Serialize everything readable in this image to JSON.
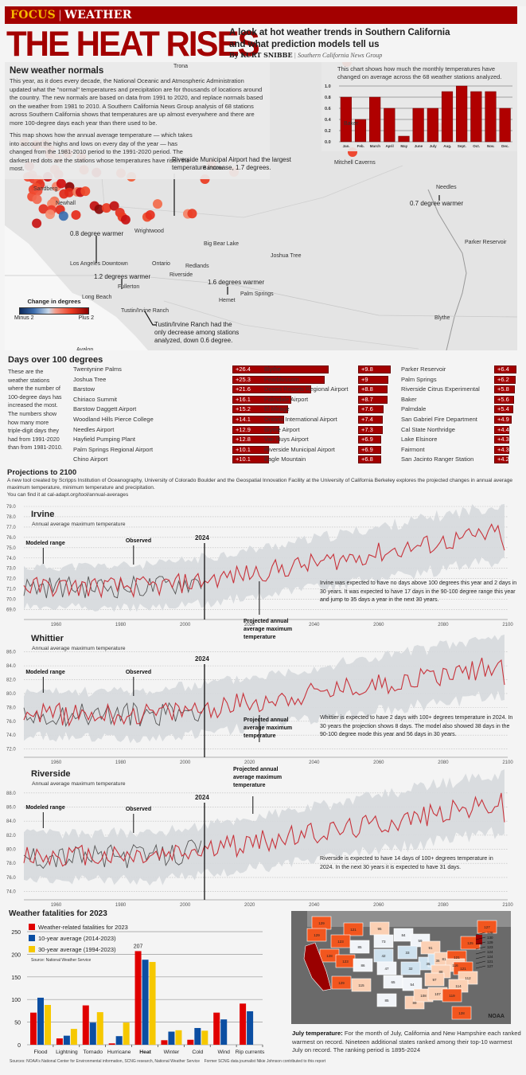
{
  "header": {
    "kicker_section": "FOCUS",
    "kicker_topic": "WEATHER",
    "headline": "THE HEAT RISES",
    "dek": "A look at hot weather trends in Southern California and what prediction models tell us",
    "byline_author": "By KURT SNIBBE",
    "byline_org": "Southern California News Group"
  },
  "normals": {
    "title": "New weather normals",
    "para1": "This year, as it does every decade, the National Oceanic and Atmospheric Administration updated what the \"normal\" temperatures and precipitation are for thousands of locations around the country. The new normals are based on data from 1991 to 2020, and replace normals based on the weather from 1981 to 2010. A Southern California News Group analysis of 68 stations across Southern California shows that temperatures are up almost everywhere and there are more 100-degree days each year than there used to be.",
    "para2": "This map shows how the annual average temperature — which takes into account the highs and lows on every day of the year — has changed from the 1981-2010 period to the 1991-2020 period. The darkest red dots are the stations whose temperatures have risen the most."
  },
  "map": {
    "legend_title": "Change in degrees",
    "legend_min": "Minus 2",
    "legend_max": "Plus 2",
    "places": [
      "Trona",
      "Baker",
      "Mitchell Caverns",
      "Barstow",
      "Needles",
      "Sandberg",
      "Newhall",
      "Wrightwood",
      "Big Bear Lake",
      "Joshua Tree",
      "Parker Reservoir",
      "Los Angeles Downtown",
      "Ontario",
      "Redlands",
      "Riverside",
      "Fullerton",
      "Long Beach",
      "Palm Springs",
      "Hemet",
      "Tustin/Irvine Ranch",
      "Blythe",
      "Avalon"
    ],
    "annotations": {
      "needles": "0.7 degree warmer",
      "riverside": "Riverside Municipal Airport had the largest temperature increase, 1.7 degrees.",
      "la": "0.8 degree warmer",
      "fullerton": "1.2 degrees warmer",
      "hemet": "1.6 degrees warmer",
      "tustin": "Tustin/Irvine Ranch had the only decrease among stations analyzed, down 0.6 degree."
    }
  },
  "chart_data": [
    {
      "id": "monthly-change",
      "type": "bar",
      "title": "This chart shows how much the monthly temperatures have changed on average across the 68 weather stations analyzed.",
      "categories": [
        "Jan.",
        "Feb.",
        "March",
        "April",
        "May",
        "June",
        "July",
        "Aug.",
        "Sept.",
        "Oct.",
        "Nov.",
        "Dec."
      ],
      "values": [
        0.8,
        0.4,
        0.8,
        0.6,
        0.1,
        0.6,
        0.6,
        0.9,
        1.0,
        0.9,
        0.9,
        0.6
      ],
      "ylim": [
        0,
        1.0
      ],
      "yticks": [
        "0.0",
        "0.2",
        "0.4",
        "0.6",
        "0.8",
        "1.0"
      ],
      "color": "#b00000"
    },
    {
      "id": "days-over-100",
      "type": "bar",
      "title": "Days over 100 degrees",
      "intro": "These are the weather stations where the number of 100-degree days has increased the most. The numbers show how many more triple-digit days they had from 1991-2020 than from 1981-2010.",
      "columns": [
        [
          {
            "name": "Twentynine Palms",
            "value": 26.4,
            "label": "+26.4"
          },
          {
            "name": "Joshua Tree",
            "value": 25.3,
            "label": "+25.3"
          },
          {
            "name": "Barstow",
            "value": 21.6,
            "label": "+21.6"
          },
          {
            "name": "Chiriaco Summit",
            "value": 16.1,
            "label": "+16.1"
          },
          {
            "name": "Barstow Daggett Airport",
            "value": 15.2,
            "label": "+15.2"
          },
          {
            "name": "Woodland Hills Pierce College",
            "value": 14.1,
            "label": "+14.1"
          },
          {
            "name": "Needles Airport",
            "value": 12.9,
            "label": "+12.9"
          },
          {
            "name": "Hayfield Pumping Plant",
            "value": 12.8,
            "label": "+12.8"
          },
          {
            "name": "Palm Springs Regional Airport",
            "value": 10.1,
            "label": "+10.1"
          },
          {
            "name": "Chino Airport",
            "value": 10.1,
            "label": "+10.1"
          }
        ],
        [
          {
            "name": "Blythe",
            "value": 9.8,
            "label": "+9.8"
          },
          {
            "name": "Pearblossom",
            "value": 9,
            "label": "+9"
          },
          {
            "name": "Desert Resorts Regional Airport",
            "value": 8.8,
            "label": "+8.8"
          },
          {
            "name": "Palmdale Airport",
            "value": 8.7,
            "label": "+8.7"
          },
          {
            "name": "El Mirage",
            "value": 7.6,
            "label": "+7.6"
          },
          {
            "name": "Ontario International Airport",
            "value": 7.4,
            "label": "+7.4"
          },
          {
            "name": "Blythe Airport",
            "value": 7.3,
            "label": "+7.3"
          },
          {
            "name": "Van Nuys Airport",
            "value": 6.9,
            "label": "+6.9"
          },
          {
            "name": "Riverside Municipal Airport",
            "value": 6.9,
            "label": "+6.9"
          },
          {
            "name": "Eagle Mountain",
            "value": 6.8,
            "label": "+6.8"
          }
        ],
        [
          {
            "name": "Parker Reservoir",
            "value": 6.4,
            "label": "+6.4"
          },
          {
            "name": "Palm Springs",
            "value": 6.2,
            "label": "+6.2"
          },
          {
            "name": "Riverside Citrus Experimental",
            "value": 5.8,
            "label": "+5.8"
          },
          {
            "name": "Baker",
            "value": 5.6,
            "label": "+5.6"
          },
          {
            "name": "Palmdale",
            "value": 5.4,
            "label": "+5.4"
          },
          {
            "name": "San Gabriel Fire Department",
            "value": 4.9,
            "label": "+4.9"
          },
          {
            "name": "Cal State Northridge",
            "value": 4.4,
            "label": "+4.4"
          },
          {
            "name": "Lake Elsinore",
            "value": 4.3,
            "label": "+4.3"
          },
          {
            "name": "Fairmont",
            "value": 4.3,
            "label": "+4.3"
          },
          {
            "name": "San Jacinto Ranger Station",
            "value": 4.2,
            "label": "+4.2"
          }
        ]
      ]
    },
    {
      "id": "irvine",
      "type": "line",
      "title": "Irvine",
      "subtitle": "Annual average maximum temperature",
      "xlim": [
        1950,
        2100
      ],
      "xticks": [
        1960,
        1980,
        2000,
        2020,
        2040,
        2060,
        2080,
        2100
      ],
      "ylim": [
        68.5,
        79
      ],
      "yticks": [
        "69.0",
        "70.0",
        "71.0",
        "72.0",
        "73.0",
        "74.0",
        "75.0",
        "76.0",
        "77.0",
        "78.0",
        "79.0"
      ],
      "marker_year": 2006,
      "marker_label": "2024",
      "labels": {
        "modeled": "Modeled range",
        "observed": "Observed",
        "projected": "Projected annual average maximum temperature"
      },
      "note": "Irvine was expected to have no days above 100 degrees this year and 2 days in 30 years. It was expected to have 17 days in the 90-100 degree range this year and jump to 35 days a year in the next 30 years.",
      "trend": {
        "start": 71.2,
        "end": 76.6,
        "noise": 1.0
      },
      "observed_range": [
        1950,
        2005
      ],
      "band_width": [
        1.8,
        2.6
      ]
    },
    {
      "id": "whittier",
      "type": "line",
      "title": "Whittier",
      "subtitle": "Annual average maximum temperature",
      "xlim": [
        1950,
        2100
      ],
      "xticks": [
        1960,
        1980,
        2000,
        2020,
        2040,
        2060,
        2080,
        2100
      ],
      "ylim": [
        71.5,
        87
      ],
      "yticks": [
        "72.0",
        "74.0",
        "76.0",
        "78.0",
        "80.0",
        "82.0",
        "84.0",
        "86.0"
      ],
      "marker_year": 2006,
      "marker_label": "2024",
      "labels": {
        "modeled": "Modeled range",
        "observed": "Observed",
        "projected": "Projected annual average maximum temperature"
      },
      "note": "Whittier is expected to have 2 days with 100+ degrees temperature in 2024. In 30 years the projection shows 8 days. The model also showed 38 days in the 90-100 degree mode this year and 56 days in 30 years.",
      "trend": {
        "start": 77.0,
        "end": 84.2,
        "noise": 1.6
      },
      "observed_range": [
        1950,
        2005
      ],
      "band_width": [
        3.0,
        4.0
      ]
    },
    {
      "id": "riverside",
      "type": "line",
      "title": "Riverside",
      "subtitle": "Annual average maximum temperature",
      "xlim": [
        1950,
        2100
      ],
      "xticks": [
        1960,
        1980,
        2000,
        2020,
        2040,
        2060,
        2080,
        2100
      ],
      "ylim": [
        73.5,
        89
      ],
      "yticks": [
        "74.0",
        "76.0",
        "78.0",
        "80.0",
        "82.0",
        "84.0",
        "86.0",
        "88.0"
      ],
      "marker_year": 2006,
      "marker_label": "2024",
      "labels": {
        "modeled": "Modeled range",
        "observed": "Observed",
        "projected": "Projected annual average maximum temperature"
      },
      "note": "Riverside is expected to have 14 days of 100+ degrees temperature in 2024. In the next 30 years it is expected to have 31 days.",
      "trend": {
        "start": 79.0,
        "end": 86.8,
        "noise": 1.6
      },
      "observed_range": [
        1950,
        2005
      ],
      "band_width": [
        3.0,
        4.0
      ]
    },
    {
      "id": "fatalities",
      "type": "bar",
      "title": "Weather fatalities for 2023",
      "categories": [
        "Flood",
        "Lightning",
        "Tornado",
        "Hurricane",
        "Heat",
        "Winter",
        "Cold",
        "Wind",
        "Rip currents"
      ],
      "highlight_category": "Heat",
      "series": [
        {
          "name": "Weather-related fatalities for 2023",
          "color": "#e00000",
          "values": [
            71,
            14,
            87,
            3,
            207,
            10,
            11,
            71,
            91
          ]
        },
        {
          "name": "10-year average (2014-2023)",
          "color": "#0b4ea2",
          "values": [
            104,
            20,
            49,
            19,
            188,
            29,
            37,
            56,
            74
          ]
        },
        {
          "name": "30-year average (1994-2023)",
          "color": "#f6c800",
          "values": [
            88,
            35,
            72,
            49,
            183,
            32,
            31,
            0,
            0
          ]
        }
      ],
      "data_label": {
        "category": "Heat",
        "text": "207"
      },
      "ylim": [
        0,
        250
      ],
      "yticks": [
        "0",
        "50",
        "100",
        "150",
        "200",
        "250"
      ],
      "source": "Source: National Weather Service"
    }
  ],
  "projections": {
    "title": "Projections to 2100",
    "desc": "A new tool created by Scripps Institution of Oceanography, University of Colorado Boulder and the Geospatial Innovation Facility at the University of California Berkeley explores the projected changes in annual average maximum temperature, minimum temperature and precipitation.",
    "link": "You can find it at cal-adapt.org/tool/annual-averages"
  },
  "usmap": {
    "credit": "NOAA",
    "caption_bold": "July temperature:",
    "caption": " For the month of July, California and New Hampshire each ranked warmest on record. Nineteen additional states ranked among their top-10 warmest July on record. The ranking period is 1895-2024",
    "states": [
      {
        "n": "129"
      },
      {
        "n": "121"
      },
      {
        "n": "95"
      },
      {
        "n": "84"
      },
      {
        "n": "59"
      },
      {
        "n": "127"
      },
      {
        "n": "129"
      },
      {
        "n": "123"
      },
      {
        "n": "85"
      },
      {
        "n": "73"
      },
      {
        "n": "33"
      },
      {
        "n": "91"
      },
      {
        "n": "42"
      },
      {
        "n": "35"
      },
      {
        "n": "36"
      },
      {
        "n": "125"
      },
      {
        "n": "128"
      },
      {
        "n": "123"
      },
      {
        "n": "86"
      },
      {
        "n": "47"
      },
      {
        "n": "32"
      },
      {
        "n": "81"
      },
      {
        "n": "121"
      },
      {
        "n": "116"
      },
      {
        "n": "88"
      },
      {
        "n": "121"
      },
      {
        "n": "129"
      },
      {
        "n": "115"
      },
      {
        "n": "65"
      },
      {
        "n": "54"
      },
      {
        "n": "97"
      },
      {
        "n": "112"
      },
      {
        "n": "114"
      },
      {
        "n": "85"
      },
      {
        "n": "89"
      },
      {
        "n": "108"
      },
      {
        "n": "107"
      },
      {
        "n": "119"
      },
      {
        "n": "128"
      }
    ],
    "ne_labels": [
      "128",
      "130",
      "129",
      "123",
      "124",
      "124",
      "121",
      "127"
    ]
  },
  "footer": {
    "sources": "Sources: NOAA's National Center for Environmental information, SCNG research, National Weather Service",
    "credit": "Former SCNG data journalist Nikie Johnson contributed to this report"
  }
}
